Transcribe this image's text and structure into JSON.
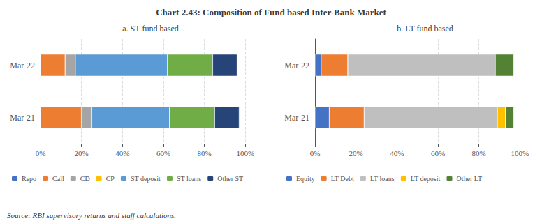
{
  "chart_data": [
    {
      "type": "bar",
      "orientation": "horizontal",
      "stacked": true,
      "title": "Chart 2.43: Composition of Fund based Inter-Bank Market",
      "subtitle": "a. ST fund based",
      "annotations": [
        "Source: RBI supervisory returns and staff calculations."
      ],
      "categories": [
        "Mar-22",
        "Mar-21"
      ],
      "series": [
        {
          "name": "Repo",
          "color": "#4472c4",
          "values": [
            0,
            0
          ]
        },
        {
          "name": "Call",
          "color": "#ed7d31",
          "values": [
            12,
            20
          ]
        },
        {
          "name": "CD",
          "color": "#a5a5a5",
          "values": [
            5,
            5
          ]
        },
        {
          "name": "CP",
          "color": "#ffc000",
          "values": [
            0,
            0
          ]
        },
        {
          "name": "ST deposit",
          "color": "#5b9bd5",
          "values": [
            45,
            38
          ]
        },
        {
          "name": "ST loans",
          "color": "#70ad47",
          "values": [
            22,
            22
          ]
        },
        {
          "name": "Other ST",
          "color": "#264478",
          "values": [
            12,
            12
          ]
        }
      ],
      "xlim": [
        0,
        104
      ],
      "xticks": [
        {
          "value": 0,
          "label": "0%"
        },
        {
          "value": 20,
          "label": "20%"
        },
        {
          "value": 40,
          "label": "40%"
        },
        {
          "value": 60,
          "label": "60%"
        },
        {
          "value": 80,
          "label": "80%"
        },
        {
          "value": 100,
          "label": "100%"
        }
      ],
      "grid": true,
      "legend": "bottom"
    },
    {
      "type": "bar",
      "orientation": "horizontal",
      "stacked": true,
      "subtitle": "b. LT fund based",
      "categories": [
        "Mar-22",
        "Mar-21"
      ],
      "series": [
        {
          "name": "Equity",
          "color": "#4472c4",
          "values": [
            3,
            7
          ]
        },
        {
          "name": "LT Debt",
          "color": "#ed7d31",
          "values": [
            13,
            17
          ]
        },
        {
          "name": "LT loans",
          "color": "#bfbfbf",
          "values": [
            72,
            65
          ]
        },
        {
          "name": "LT deposit",
          "color": "#ffc000",
          "values": [
            0,
            4
          ]
        },
        {
          "name": "Other LT",
          "color": "#548235",
          "values": [
            9,
            4
          ]
        }
      ],
      "xlim": [
        0,
        104
      ],
      "xticks": [
        {
          "value": 0,
          "label": "0%"
        },
        {
          "value": 20,
          "label": "20%"
        },
        {
          "value": 40,
          "label": "40%"
        },
        {
          "value": 60,
          "label": "60%"
        },
        {
          "value": 80,
          "label": "80%"
        },
        {
          "value": 100,
          "label": "100%"
        }
      ],
      "grid": true,
      "legend": "bottom"
    }
  ]
}
